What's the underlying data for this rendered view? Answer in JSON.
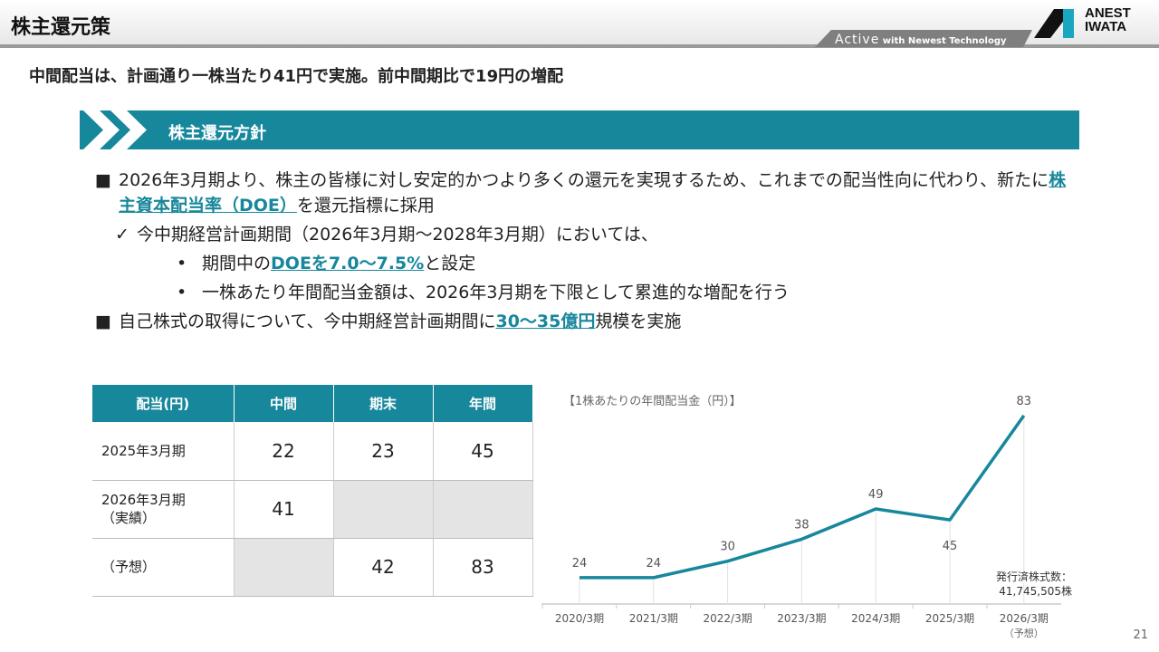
{
  "header": {
    "title": "株主還元策",
    "tagline_big": "Active",
    "tagline_small": "with Newest Technology",
    "logo": "ANEST IWATA"
  },
  "subtitle": "中間配当は、計画通り一株当たり41円で実施。前中間期比で19円の増配",
  "section": {
    "title": "株主還元方針"
  },
  "bullets": {
    "b1_pre": "2026年3月期より、株主の皆様に対し安定的かつより多くの還元を実現するため、これまでの配当性向に代わり、新たに",
    "b1_link": "株主資本配当率（DOE）",
    "b1_post": "を還元指標に採用",
    "check": "今中期経営計画期間（2026年3月期～2028年3月期）においては、",
    "d1_pre": "期間中の",
    "d1_link": "DOEを7.0～7.5%",
    "d1_post": "と設定",
    "d2": "一株あたり年間配当金額は、2026年3月期を下限として累進的な増配を行う",
    "b2_pre": "自己株式の取得について、今中期経営計画期間に",
    "b2_link": "30～35億円",
    "b2_post": "規模を実施"
  },
  "table": {
    "headers": [
      "配当(円)",
      "中間",
      "期末",
      "年間"
    ],
    "rows": [
      {
        "label": "2025年3月期",
        "interim": "22",
        "final": "23",
        "annual": "45"
      },
      {
        "label": "2026年3月期\n（実績）",
        "interim": "41",
        "final": "",
        "annual": ""
      },
      {
        "label": "（予想）",
        "interim": "",
        "final": "42",
        "annual": "83"
      }
    ]
  },
  "chart_data": {
    "type": "line",
    "title": "【1株あたりの年間配当金（円）】",
    "categories": [
      "2020/3期",
      "2021/3期",
      "2022/3期",
      "2023/3期",
      "2024/3期",
      "2025/3期",
      "2026/3期"
    ],
    "category_note": "（予想）",
    "values": [
      24,
      24,
      30,
      38,
      49,
      45,
      83
    ],
    "color": "#17879c",
    "ylim": [
      14.4,
      90
    ]
  },
  "shares": {
    "label": "発行済株式数：",
    "value": "41,745,505株"
  },
  "page_number": "21"
}
